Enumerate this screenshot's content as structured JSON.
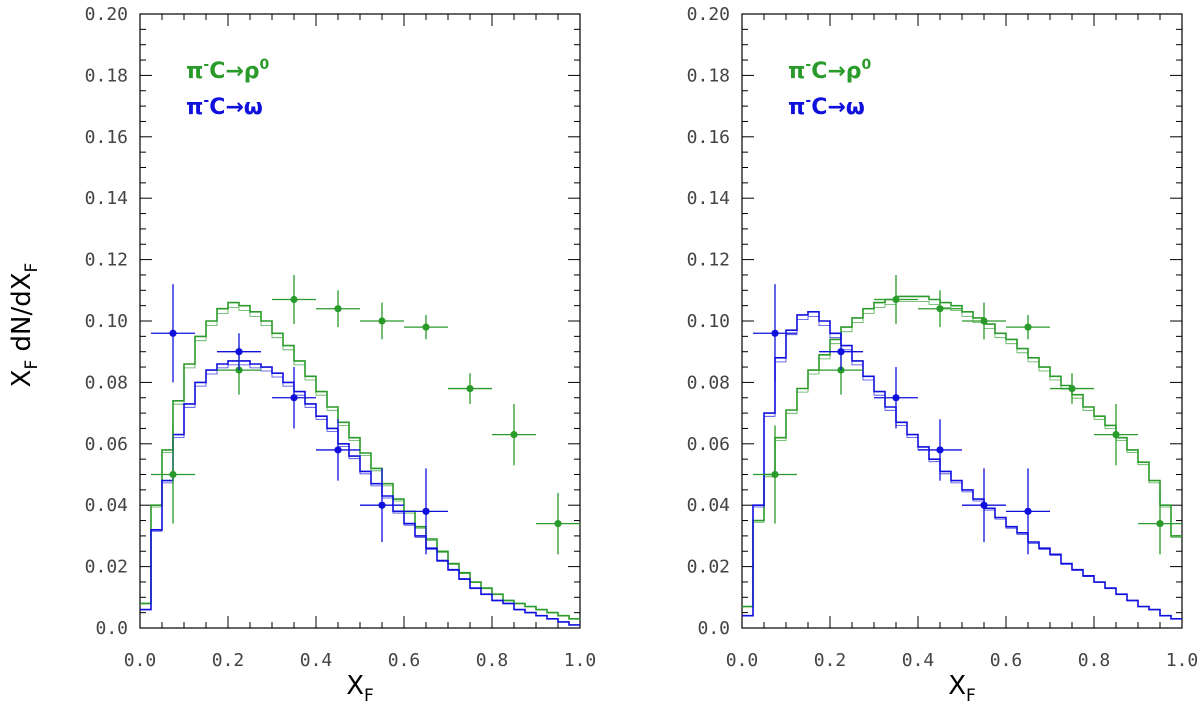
{
  "chart_data": [
    {
      "type": "line",
      "title": "",
      "xlabel": "X_F",
      "ylabel": "X_F dN/dX_F",
      "xlim": [
        0,
        1
      ],
      "ylim": [
        0,
        0.2
      ],
      "xticks": [
        "0.0",
        "0.2",
        "0.4",
        "0.6",
        "0.8",
        "1.0"
      ],
      "yticks": [
        "0.0",
        "0.02",
        "0.04",
        "0.06",
        "0.08",
        "0.10",
        "0.12",
        "0.14",
        "0.16",
        "0.18",
        "0.20"
      ],
      "grid": false,
      "legend": [
        {
          "prefix": "π",
          "sup1": "-",
          "mid": "C→ρ",
          "sup2": "0",
          "color": "#2a9a2a"
        },
        {
          "prefix": "π",
          "sup1": "-",
          "mid": "C→ω",
          "sup2": "",
          "color": "#1010dd"
        }
      ],
      "series": [
        {
          "name": "π-C→ρ0 (model)",
          "style": "step",
          "color": "#2a9a2a",
          "x": [
            0,
            0.025,
            0.05,
            0.075,
            0.1,
            0.125,
            0.15,
            0.175,
            0.2,
            0.225,
            0.25,
            0.275,
            0.3,
            0.325,
            0.35,
            0.375,
            0.4,
            0.425,
            0.45,
            0.475,
            0.5,
            0.525,
            0.55,
            0.575,
            0.6,
            0.625,
            0.65,
            0.675,
            0.7,
            0.725,
            0.75,
            0.775,
            0.8,
            0.825,
            0.85,
            0.875,
            0.9,
            0.925,
            0.95,
            0.975,
            1.0
          ],
          "y": [
            0.008,
            0.04,
            0.058,
            0.074,
            0.086,
            0.095,
            0.1,
            0.104,
            0.106,
            0.105,
            0.103,
            0.1,
            0.096,
            0.092,
            0.087,
            0.082,
            0.077,
            0.072,
            0.067,
            0.062,
            0.057,
            0.052,
            0.047,
            0.042,
            0.038,
            0.033,
            0.029,
            0.025,
            0.021,
            0.018,
            0.015,
            0.013,
            0.011,
            0.009,
            0.008,
            0.007,
            0.006,
            0.005,
            0.004,
            0.003,
            0.002
          ]
        },
        {
          "name": "π-C→ω (model)",
          "style": "step",
          "color": "#1010dd",
          "x": [
            0,
            0.025,
            0.05,
            0.075,
            0.1,
            0.125,
            0.15,
            0.175,
            0.2,
            0.225,
            0.25,
            0.275,
            0.3,
            0.325,
            0.35,
            0.375,
            0.4,
            0.425,
            0.45,
            0.475,
            0.5,
            0.525,
            0.55,
            0.575,
            0.6,
            0.625,
            0.65,
            0.675,
            0.7,
            0.725,
            0.75,
            0.775,
            0.8,
            0.825,
            0.85,
            0.875,
            0.9,
            0.925,
            0.95,
            0.975,
            1.0
          ],
          "y": [
            0.006,
            0.032,
            0.048,
            0.063,
            0.073,
            0.08,
            0.084,
            0.086,
            0.087,
            0.087,
            0.086,
            0.085,
            0.083,
            0.08,
            0.077,
            0.073,
            0.069,
            0.065,
            0.06,
            0.056,
            0.051,
            0.047,
            0.043,
            0.038,
            0.034,
            0.03,
            0.026,
            0.022,
            0.019,
            0.016,
            0.013,
            0.011,
            0.009,
            0.008,
            0.006,
            0.005,
            0.004,
            0.003,
            0.002,
            0.001,
            0.001
          ]
        },
        {
          "name": "π-C→ρ0 (data)",
          "style": "points",
          "color": "#2a9a2a",
          "x": [
            0.075,
            0.225,
            0.35,
            0.45,
            0.55,
            0.65,
            0.75,
            0.85,
            0.95
          ],
          "y": [
            0.05,
            0.084,
            0.107,
            0.104,
            0.1,
            0.098,
            0.078,
            0.063,
            0.034
          ],
          "xerr": [
            0.05,
            0.05,
            0.05,
            0.05,
            0.05,
            0.05,
            0.05,
            0.05,
            0.05
          ],
          "yerr": [
            0.016,
            0.008,
            0.008,
            0.006,
            0.006,
            0.004,
            0.005,
            0.01,
            0.01
          ]
        },
        {
          "name": "π-C→ω (data)",
          "style": "points",
          "color": "#1010dd",
          "x": [
            0.075,
            0.225,
            0.35,
            0.45,
            0.55,
            0.65
          ],
          "y": [
            0.096,
            0.09,
            0.075,
            0.058,
            0.04,
            0.038
          ],
          "xerr": [
            0.05,
            0.05,
            0.05,
            0.05,
            0.05,
            0.05
          ],
          "yerr": [
            0.016,
            0.006,
            0.01,
            0.01,
            0.012,
            0.014
          ]
        }
      ]
    },
    {
      "type": "line",
      "title": "",
      "xlabel": "X_F",
      "ylabel": "",
      "xlim": [
        0,
        1
      ],
      "ylim": [
        0,
        0.2
      ],
      "xticks": [
        "0.0",
        "0.2",
        "0.4",
        "0.6",
        "0.8",
        "1.0"
      ],
      "yticks": [
        "0.0",
        "0.02",
        "0.04",
        "0.06",
        "0.08",
        "0.10",
        "0.12",
        "0.14",
        "0.16",
        "0.18",
        "0.20"
      ],
      "grid": false,
      "legend": [
        {
          "prefix": "π",
          "sup1": "-",
          "mid": "C→ρ",
          "sup2": "0",
          "color": "#2a9a2a"
        },
        {
          "prefix": "π",
          "sup1": "-",
          "mid": "C→ω",
          "sup2": "",
          "color": "#1010dd"
        }
      ],
      "series": [
        {
          "name": "π-C→ρ0 (model)",
          "style": "step",
          "color": "#2a9a2a",
          "x": [
            0,
            0.025,
            0.05,
            0.075,
            0.1,
            0.125,
            0.15,
            0.175,
            0.2,
            0.225,
            0.25,
            0.275,
            0.3,
            0.325,
            0.35,
            0.375,
            0.4,
            0.425,
            0.45,
            0.475,
            0.5,
            0.525,
            0.55,
            0.575,
            0.6,
            0.625,
            0.65,
            0.675,
            0.7,
            0.725,
            0.75,
            0.775,
            0.8,
            0.825,
            0.85,
            0.875,
            0.9,
            0.925,
            0.95,
            0.975,
            1.0
          ],
          "y": [
            0.007,
            0.035,
            0.05,
            0.062,
            0.071,
            0.078,
            0.084,
            0.089,
            0.094,
            0.098,
            0.101,
            0.104,
            0.106,
            0.107,
            0.108,
            0.108,
            0.108,
            0.107,
            0.106,
            0.105,
            0.103,
            0.101,
            0.099,
            0.096,
            0.094,
            0.091,
            0.088,
            0.085,
            0.082,
            0.079,
            0.076,
            0.072,
            0.069,
            0.066,
            0.062,
            0.058,
            0.054,
            0.048,
            0.04,
            0.03,
            0.025
          ]
        },
        {
          "name": "π-C→ω (model)",
          "style": "step",
          "color": "#1010dd",
          "x": [
            0,
            0.025,
            0.05,
            0.075,
            0.1,
            0.125,
            0.15,
            0.175,
            0.2,
            0.225,
            0.25,
            0.275,
            0.3,
            0.325,
            0.35,
            0.375,
            0.4,
            0.425,
            0.45,
            0.475,
            0.5,
            0.525,
            0.55,
            0.575,
            0.6,
            0.625,
            0.65,
            0.675,
            0.7,
            0.725,
            0.75,
            0.775,
            0.8,
            0.825,
            0.85,
            0.875,
            0.9,
            0.925,
            0.95,
            0.975,
            1.0
          ],
          "y": [
            0.004,
            0.04,
            0.07,
            0.088,
            0.097,
            0.102,
            0.103,
            0.1,
            0.096,
            0.092,
            0.087,
            0.082,
            0.077,
            0.072,
            0.067,
            0.063,
            0.059,
            0.055,
            0.051,
            0.048,
            0.045,
            0.042,
            0.039,
            0.036,
            0.033,
            0.031,
            0.028,
            0.026,
            0.024,
            0.021,
            0.019,
            0.017,
            0.015,
            0.013,
            0.011,
            0.009,
            0.007,
            0.006,
            0.004,
            0.003,
            0.001
          ]
        },
        {
          "name": "π-C→ρ0 (data)",
          "style": "points",
          "color": "#2a9a2a",
          "x": [
            0.075,
            0.225,
            0.35,
            0.45,
            0.55,
            0.65,
            0.75,
            0.85,
            0.95
          ],
          "y": [
            0.05,
            0.084,
            0.107,
            0.104,
            0.1,
            0.098,
            0.078,
            0.063,
            0.034
          ],
          "xerr": [
            0.05,
            0.05,
            0.05,
            0.05,
            0.05,
            0.05,
            0.05,
            0.05,
            0.05
          ],
          "yerr": [
            0.016,
            0.008,
            0.008,
            0.006,
            0.006,
            0.004,
            0.005,
            0.01,
            0.01
          ]
        },
        {
          "name": "π-C→ω (data)",
          "style": "points",
          "color": "#1010dd",
          "x": [
            0.075,
            0.225,
            0.35,
            0.45,
            0.55,
            0.65
          ],
          "y": [
            0.096,
            0.09,
            0.075,
            0.058,
            0.04,
            0.038
          ],
          "xerr": [
            0.05,
            0.05,
            0.05,
            0.05,
            0.05,
            0.05
          ],
          "yerr": [
            0.016,
            0.006,
            0.01,
            0.01,
            0.012,
            0.014
          ]
        }
      ]
    }
  ]
}
